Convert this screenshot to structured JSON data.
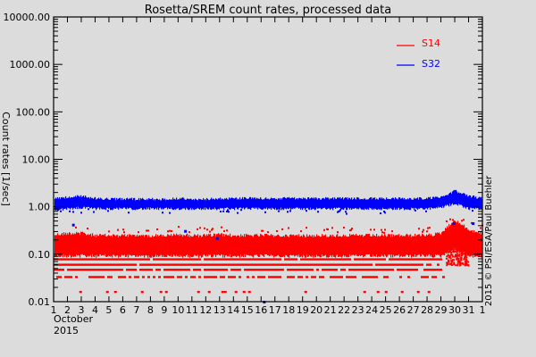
{
  "chart_data": {
    "type": "scatter",
    "title": "Rosetta/SREM count rates, processed data",
    "xlabel": "October\n2015",
    "xlabel_lines": [
      "October",
      "2015"
    ],
    "ylabel": "Count rates [1/sec]",
    "yscale": "log",
    "ylim": [
      0.01,
      10000
    ],
    "yticks": [
      {
        "value": 10000,
        "label": "10000.00"
      },
      {
        "value": 1000,
        "label": "1000.00"
      },
      {
        "value": 100,
        "label": "100.00"
      },
      {
        "value": 10,
        "label": "10.00"
      },
      {
        "value": 1,
        "label": "1.00"
      },
      {
        "value": 0.1,
        "label": "0.10"
      },
      {
        "value": 0.01,
        "label": "0.01"
      }
    ],
    "xlim": [
      1,
      32
    ],
    "xticks": [
      "1",
      "2",
      "3",
      "4",
      "5",
      "6",
      "7",
      "8",
      "9",
      "10",
      "11",
      "12",
      "13",
      "14",
      "15",
      "16",
      "17",
      "18",
      "19",
      "20",
      "21",
      "22",
      "23",
      "24",
      "25",
      "26",
      "27",
      "28",
      "29",
      "30",
      "31",
      "1"
    ],
    "legend": {
      "position": "upper right",
      "entries": [
        {
          "name": "S14",
          "color": "#ff0000"
        },
        {
          "name": "S32",
          "color": "#0000ff"
        }
      ]
    },
    "annotation": "2015 © PSI/ESA/Paul Buehler",
    "grid": false,
    "series": [
      {
        "name": "S32",
        "color": "#0000ff",
        "description": "dense band of count rates",
        "band_low": [
          0.8,
          0.85,
          0.9,
          0.85,
          0.85,
          0.85,
          0.85,
          0.85,
          0.85,
          0.85,
          0.85,
          0.85,
          0.85,
          0.85,
          0.85,
          0.85,
          0.85,
          0.85,
          0.85,
          0.85,
          0.85,
          0.85,
          0.85,
          0.85,
          0.85,
          0.85,
          0.85,
          0.85,
          0.9,
          1.1,
          0.85,
          0.85
        ],
        "band_high": [
          1.6,
          1.7,
          1.8,
          1.6,
          1.55,
          1.55,
          1.55,
          1.55,
          1.55,
          1.6,
          1.55,
          1.55,
          1.6,
          1.6,
          1.6,
          1.6,
          1.6,
          1.6,
          1.6,
          1.6,
          1.6,
          1.6,
          1.6,
          1.6,
          1.6,
          1.6,
          1.6,
          1.6,
          1.7,
          2.3,
          1.8,
          1.6
        ],
        "median": [
          1.15,
          1.2,
          1.25,
          1.15,
          1.15,
          1.15,
          1.15,
          1.15,
          1.15,
          1.15,
          1.15,
          1.15,
          1.15,
          1.15,
          1.15,
          1.15,
          1.15,
          1.15,
          1.15,
          1.15,
          1.15,
          1.15,
          1.15,
          1.15,
          1.15,
          1.15,
          1.15,
          1.15,
          1.25,
          1.7,
          1.3,
          1.2
        ],
        "outliers": [
          [
            2.4,
            0.42
          ],
          [
            10.5,
            0.31
          ],
          [
            12.8,
            0.22
          ],
          [
            29.9,
            0.45
          ],
          [
            31.3,
            0.45
          ],
          [
            16.2,
            0.01
          ]
        ]
      },
      {
        "name": "S14",
        "color": "#ff0000",
        "description": "dense band plus discrete quantized levels",
        "band_low": [
          0.1,
          0.1,
          0.1,
          0.1,
          0.1,
          0.1,
          0.1,
          0.1,
          0.1,
          0.1,
          0.1,
          0.1,
          0.1,
          0.1,
          0.1,
          0.1,
          0.1,
          0.1,
          0.1,
          0.1,
          0.1,
          0.1,
          0.1,
          0.1,
          0.1,
          0.1,
          0.1,
          0.1,
          0.1,
          0.14,
          0.1,
          0.1
        ],
        "band_high": [
          0.28,
          0.3,
          0.3,
          0.27,
          0.27,
          0.27,
          0.27,
          0.27,
          0.27,
          0.28,
          0.27,
          0.27,
          0.28,
          0.27,
          0.27,
          0.27,
          0.27,
          0.27,
          0.27,
          0.27,
          0.27,
          0.27,
          0.27,
          0.27,
          0.27,
          0.27,
          0.27,
          0.27,
          0.3,
          0.55,
          0.35,
          0.3
        ],
        "levels": [
          0.078,
          0.06,
          0.047,
          0.033,
          0.016
        ],
        "level_coverage": [
          [
            1,
            29
          ],
          [
            1,
            29
          ],
          [
            1,
            29
          ],
          [
            1,
            29.2
          ],
          [
            1.5,
            28.3
          ]
        ]
      }
    ]
  }
}
